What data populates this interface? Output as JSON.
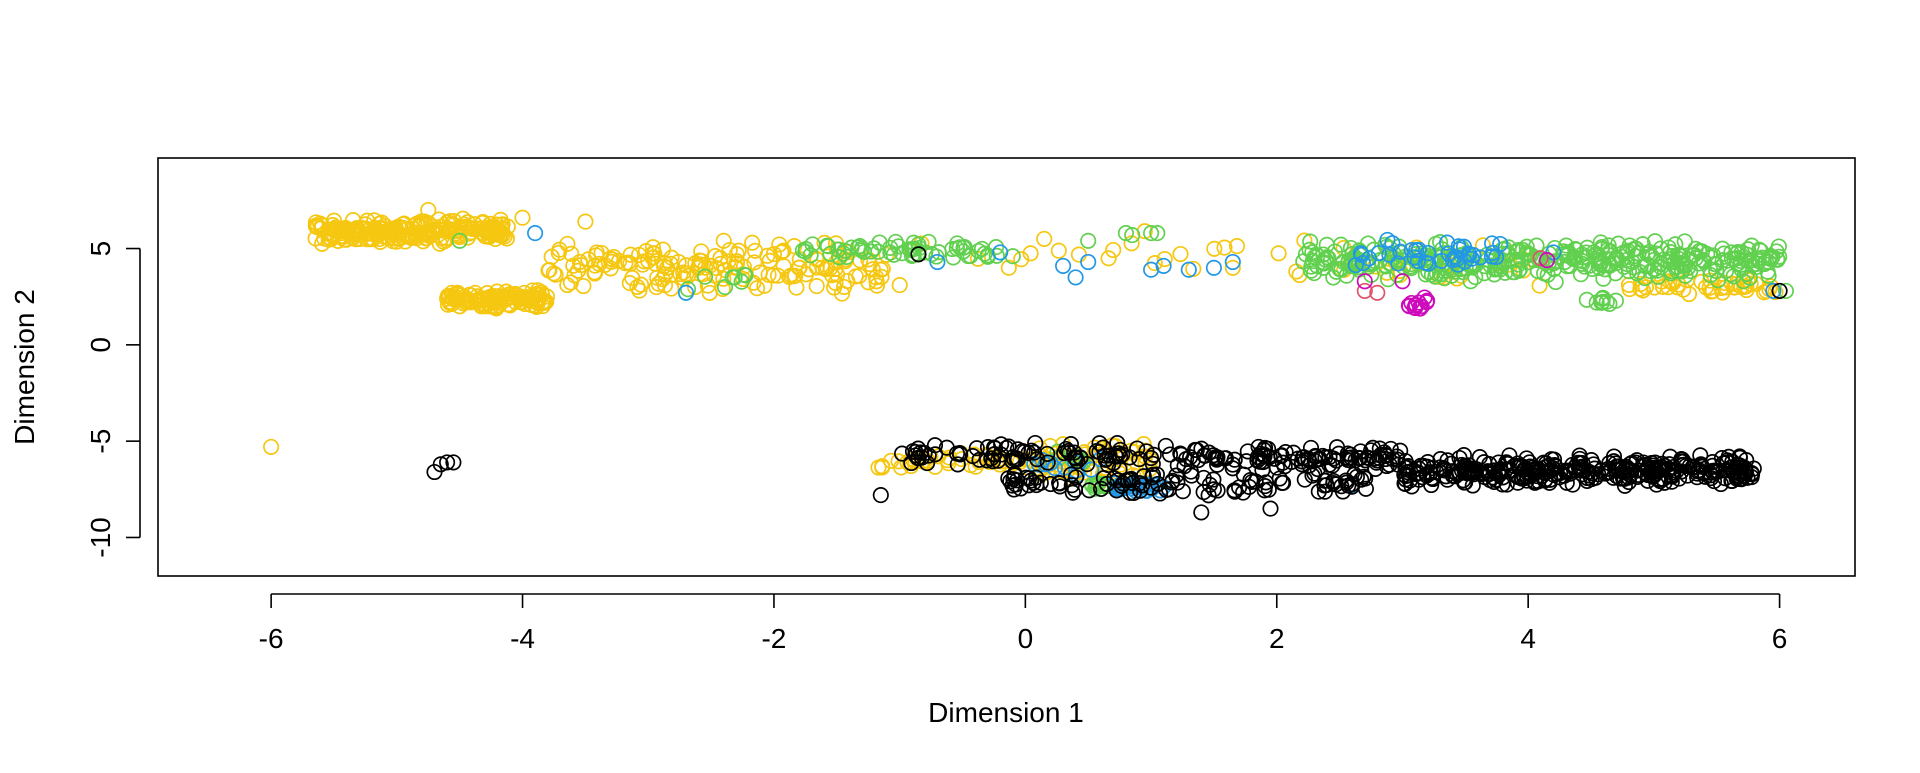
{
  "chart_data": {
    "type": "scatter",
    "title": "",
    "xlabel": "Dimension 1",
    "ylabel": "Dimension 2",
    "xlim": [
      -6.9,
      6.6
    ],
    "ylim": [
      -12,
      9.7
    ],
    "x_ticks": [
      -6,
      -4,
      -2,
      0,
      2,
      4,
      6
    ],
    "y_ticks": [
      -10,
      -5,
      0,
      5
    ],
    "grid": false,
    "legend": "none",
    "marker": "open-circle",
    "series": [
      {
        "color": "#F5C710",
        "clusters": [
          {
            "x": [
              -5.65,
              -4.1
            ],
            "y": [
              5.2,
              6.6
            ],
            "n": 240
          },
          {
            "x": [
              -4.6,
              -3.8
            ],
            "y": [
              1.8,
              2.9
            ],
            "n": 120
          },
          {
            "x": [
              -3.8,
              -1.1
            ],
            "y": [
              2.6,
              5.4
            ],
            "n": 170
          },
          {
            "x": [
              -1.2,
              1.7
            ],
            "y": [
              3.7,
              5.6
            ],
            "n": 20
          },
          {
            "x": [
              2.0,
              4.5
            ],
            "y": [
              2.6,
              5.6
            ],
            "n": 30
          },
          {
            "x": [
              4.8,
              6.0
            ],
            "y": [
              2.6,
              3.4
            ],
            "n": 45
          },
          {
            "x": [
              -1.2,
              0.3
            ],
            "y": [
              -6.5,
              -5.5
            ],
            "n": 55
          },
          {
            "x": [
              0.1,
              1.0
            ],
            "y": [
              -7.4,
              -4.8
            ],
            "n": 60
          }
        ],
        "points": [
          [
            -6.0,
            -5.3
          ],
          [
            -4.75,
            7.0
          ],
          [
            -4.0,
            6.6
          ],
          [
            -3.5,
            6.4
          ],
          [
            0.95,
            5.9
          ],
          [
            1.65,
            4.0
          ],
          [
            -1.0,
            3.1
          ],
          [
            -2.4,
            5.4
          ],
          [
            0.15,
            5.5
          ]
        ]
      },
      {
        "color": "#61D04F",
        "clusters": [
          {
            "x": [
              2.2,
              6.0
            ],
            "y": [
              3.2,
              5.5
            ],
            "n": 380
          },
          {
            "x": [
              -1.8,
              -0.2
            ],
            "y": [
              4.4,
              5.4
            ],
            "n": 60
          },
          {
            "x": [
              -2.7,
              -2.2
            ],
            "y": [
              2.8,
              3.9
            ],
            "n": 8
          },
          {
            "x": [
              4.4,
              4.7
            ],
            "y": [
              2.1,
              2.6
            ],
            "n": 9
          },
          {
            "x": [
              0.5,
              0.7
            ],
            "y": [
              -7.6,
              -7.1
            ],
            "n": 14
          },
          {
            "x": [
              0.2,
              0.5
            ],
            "y": [
              -6.3,
              -5.5
            ],
            "n": 6
          }
        ],
        "points": [
          [
            -4.5,
            5.4
          ],
          [
            0.5,
            5.4
          ],
          [
            0.8,
            5.8
          ],
          [
            1.0,
            5.8
          ],
          [
            1.05,
            5.8
          ],
          [
            -0.1,
            4.6
          ],
          [
            6.05,
            2.8
          ],
          [
            -1.3,
            5.0
          ],
          [
            0.85,
            5.7
          ]
        ]
      },
      {
        "color": "#2297E6",
        "clusters": [
          {
            "x": [
              2.6,
              3.8
            ],
            "y": [
              3.7,
              5.5
            ],
            "n": 40
          },
          {
            "x": [
              0.7,
              1.1
            ],
            "y": [
              -7.6,
              -7.1
            ],
            "n": 30
          },
          {
            "x": [
              0.0,
              0.6
            ],
            "y": [
              -6.9,
              -5.7
            ],
            "n": 12
          }
        ],
        "points": [
          [
            -2.7,
            2.7
          ],
          [
            -3.9,
            5.8
          ],
          [
            -0.2,
            4.8
          ],
          [
            0.3,
            4.1
          ],
          [
            0.4,
            3.5
          ],
          [
            0.5,
            4.3
          ],
          [
            1.0,
            3.9
          ],
          [
            1.1,
            4.1
          ],
          [
            1.3,
            3.9
          ],
          [
            1.5,
            4.0
          ],
          [
            1.65,
            4.3
          ],
          [
            4.2,
            4.8
          ],
          [
            5.95,
            2.8
          ],
          [
            2.6,
            -7.3
          ],
          [
            -0.7,
            4.3
          ]
        ]
      },
      {
        "color": "#000000",
        "clusters": [
          {
            "x": [
              -1.1,
              1.2
            ],
            "y": [
              -6.3,
              -5.0
            ],
            "n": 90
          },
          {
            "x": [
              1.2,
              3.0
            ],
            "y": [
              -6.5,
              -5.2
            ],
            "n": 110
          },
          {
            "x": [
              3.0,
              5.8
            ],
            "y": [
              -7.4,
              -5.7
            ],
            "n": 360
          },
          {
            "x": [
              -0.15,
              2.8
            ],
            "y": [
              -7.9,
              -6.4
            ],
            "n": 110
          }
        ],
        "points": [
          [
            -4.7,
            -6.6
          ],
          [
            -4.65,
            -6.2
          ],
          [
            -4.6,
            -6.1
          ],
          [
            -4.55,
            -6.1
          ],
          [
            -1.15,
            -7.8
          ],
          [
            1.4,
            -8.7
          ],
          [
            1.95,
            -8.5
          ],
          [
            -0.85,
            4.7
          ],
          [
            6.0,
            2.8
          ],
          [
            1.5,
            -7.5
          ],
          [
            1.7,
            -7.4
          ]
        ]
      },
      {
        "color": "#DF536B",
        "clusters": [],
        "points": [
          [
            2.7,
            2.8
          ],
          [
            2.8,
            2.7
          ],
          [
            4.15,
            4.4
          ],
          [
            4.1,
            4.5
          ]
        ]
      },
      {
        "color": "#CD0BBC",
        "clusters": [
          {
            "x": [
              3.05,
              3.2
            ],
            "y": [
              1.5,
              2.6
            ],
            "n": 14
          }
        ],
        "points": [
          [
            2.7,
            3.3
          ],
          [
            3.0,
            3.3
          ],
          [
            4.15,
            4.4
          ]
        ]
      }
    ]
  }
}
